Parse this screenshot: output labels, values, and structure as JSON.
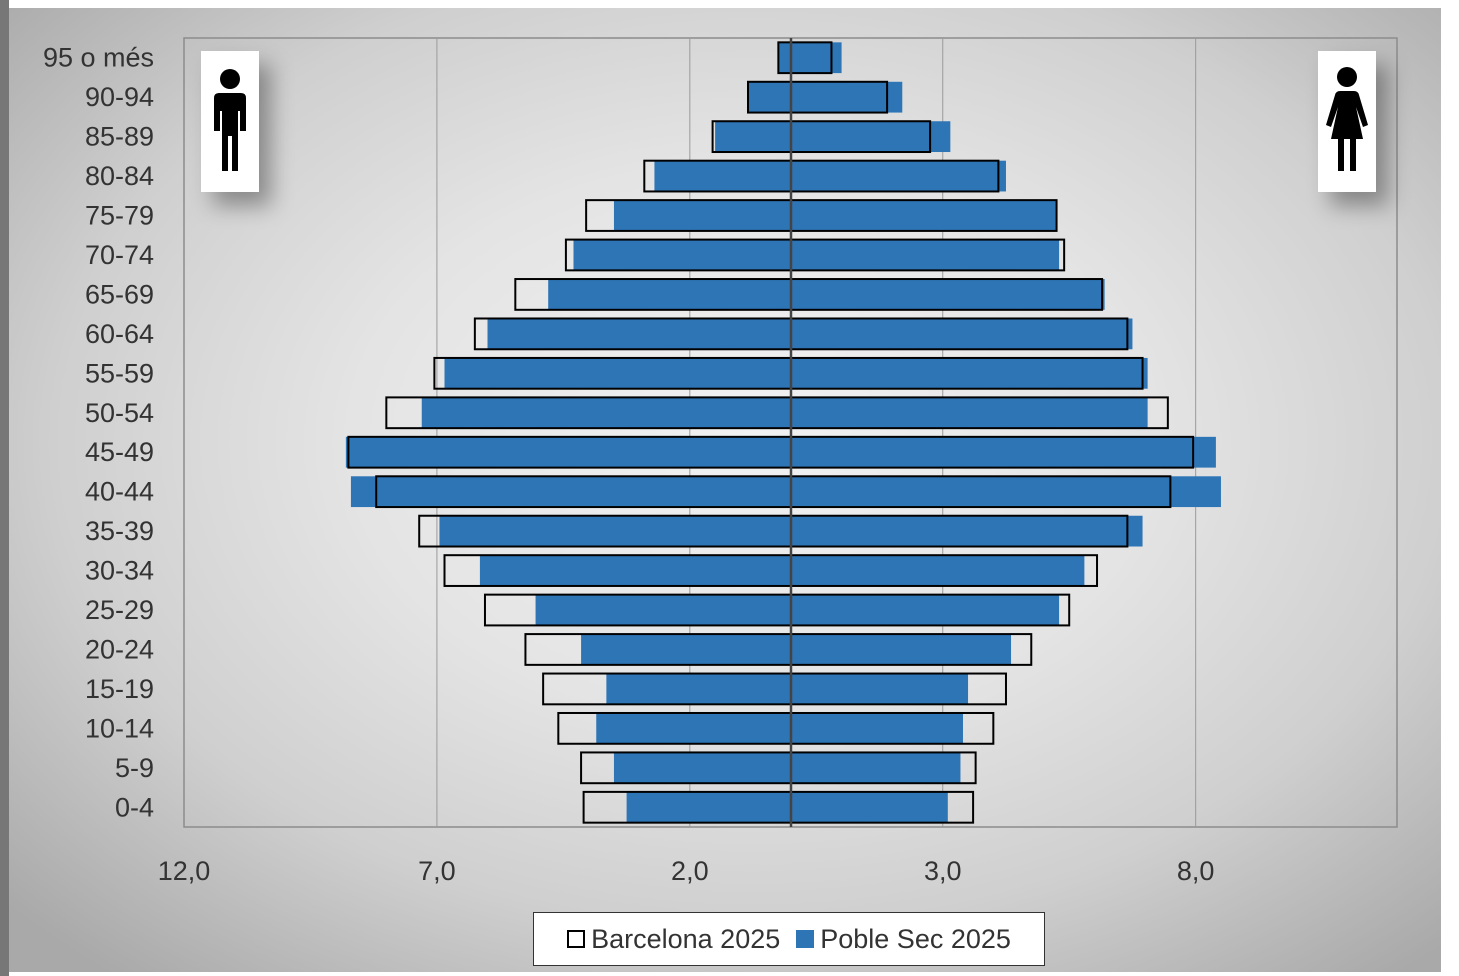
{
  "chart_data": {
    "type": "bar",
    "orientation": "horizontal-population-pyramid",
    "categories": [
      "0-4",
      "5-9",
      "10-14",
      "15-19",
      "20-24",
      "25-29",
      "30-34",
      "35-39",
      "40-44",
      "45-49",
      "50-54",
      "55-59",
      "60-64",
      "65-69",
      "70-74",
      "75-79",
      "80-84",
      "85-89",
      "90-94",
      "95 o més"
    ],
    "series": [
      {
        "name": "Barcelona 2025",
        "style": "outline",
        "men": [
          4.1,
          4.15,
          4.6,
          4.9,
          5.25,
          6.05,
          6.85,
          7.35,
          8.2,
          8.75,
          8.0,
          7.05,
          6.25,
          5.45,
          4.45,
          4.05,
          2.9,
          1.55,
          0.85,
          0.25
        ],
        "women": [
          3.6,
          3.65,
          4.0,
          4.25,
          4.75,
          5.5,
          6.05,
          6.65,
          7.5,
          7.95,
          7.45,
          6.95,
          6.65,
          6.15,
          5.4,
          5.25,
          4.1,
          2.75,
          1.9,
          0.8
        ]
      },
      {
        "name": "Poble Sec 2025",
        "style": "filled",
        "men": [
          3.25,
          3.5,
          3.85,
          3.65,
          4.15,
          5.05,
          6.15,
          6.95,
          8.7,
          8.8,
          7.3,
          6.85,
          6.0,
          4.8,
          4.3,
          3.5,
          2.7,
          1.5,
          0.85,
          0.25
        ],
        "women": [
          3.1,
          3.35,
          3.4,
          3.5,
          4.35,
          5.3,
          5.8,
          6.95,
          8.5,
          8.4,
          7.05,
          7.05,
          6.75,
          6.2,
          5.3,
          5.25,
          4.25,
          3.15,
          2.2,
          1.0
        ]
      }
    ],
    "x_ticks": [
      "12,0",
      "7,0",
      "2,0",
      "3,0",
      "8,0"
    ],
    "x_tick_values": [
      -12,
      -7,
      -2,
      3,
      8
    ],
    "xlim": [
      -12,
      12
    ],
    "grid": "vertical",
    "legend": "bottom",
    "colors": {
      "poble_sec": "#2E75B6",
      "barcelona_outline": "#000000"
    },
    "icons": {
      "left": "male-icon",
      "right": "female-icon"
    }
  },
  "legend": {
    "bcn_label": "Barcelona 2025",
    "ps_label": "Poble Sec 2025"
  }
}
